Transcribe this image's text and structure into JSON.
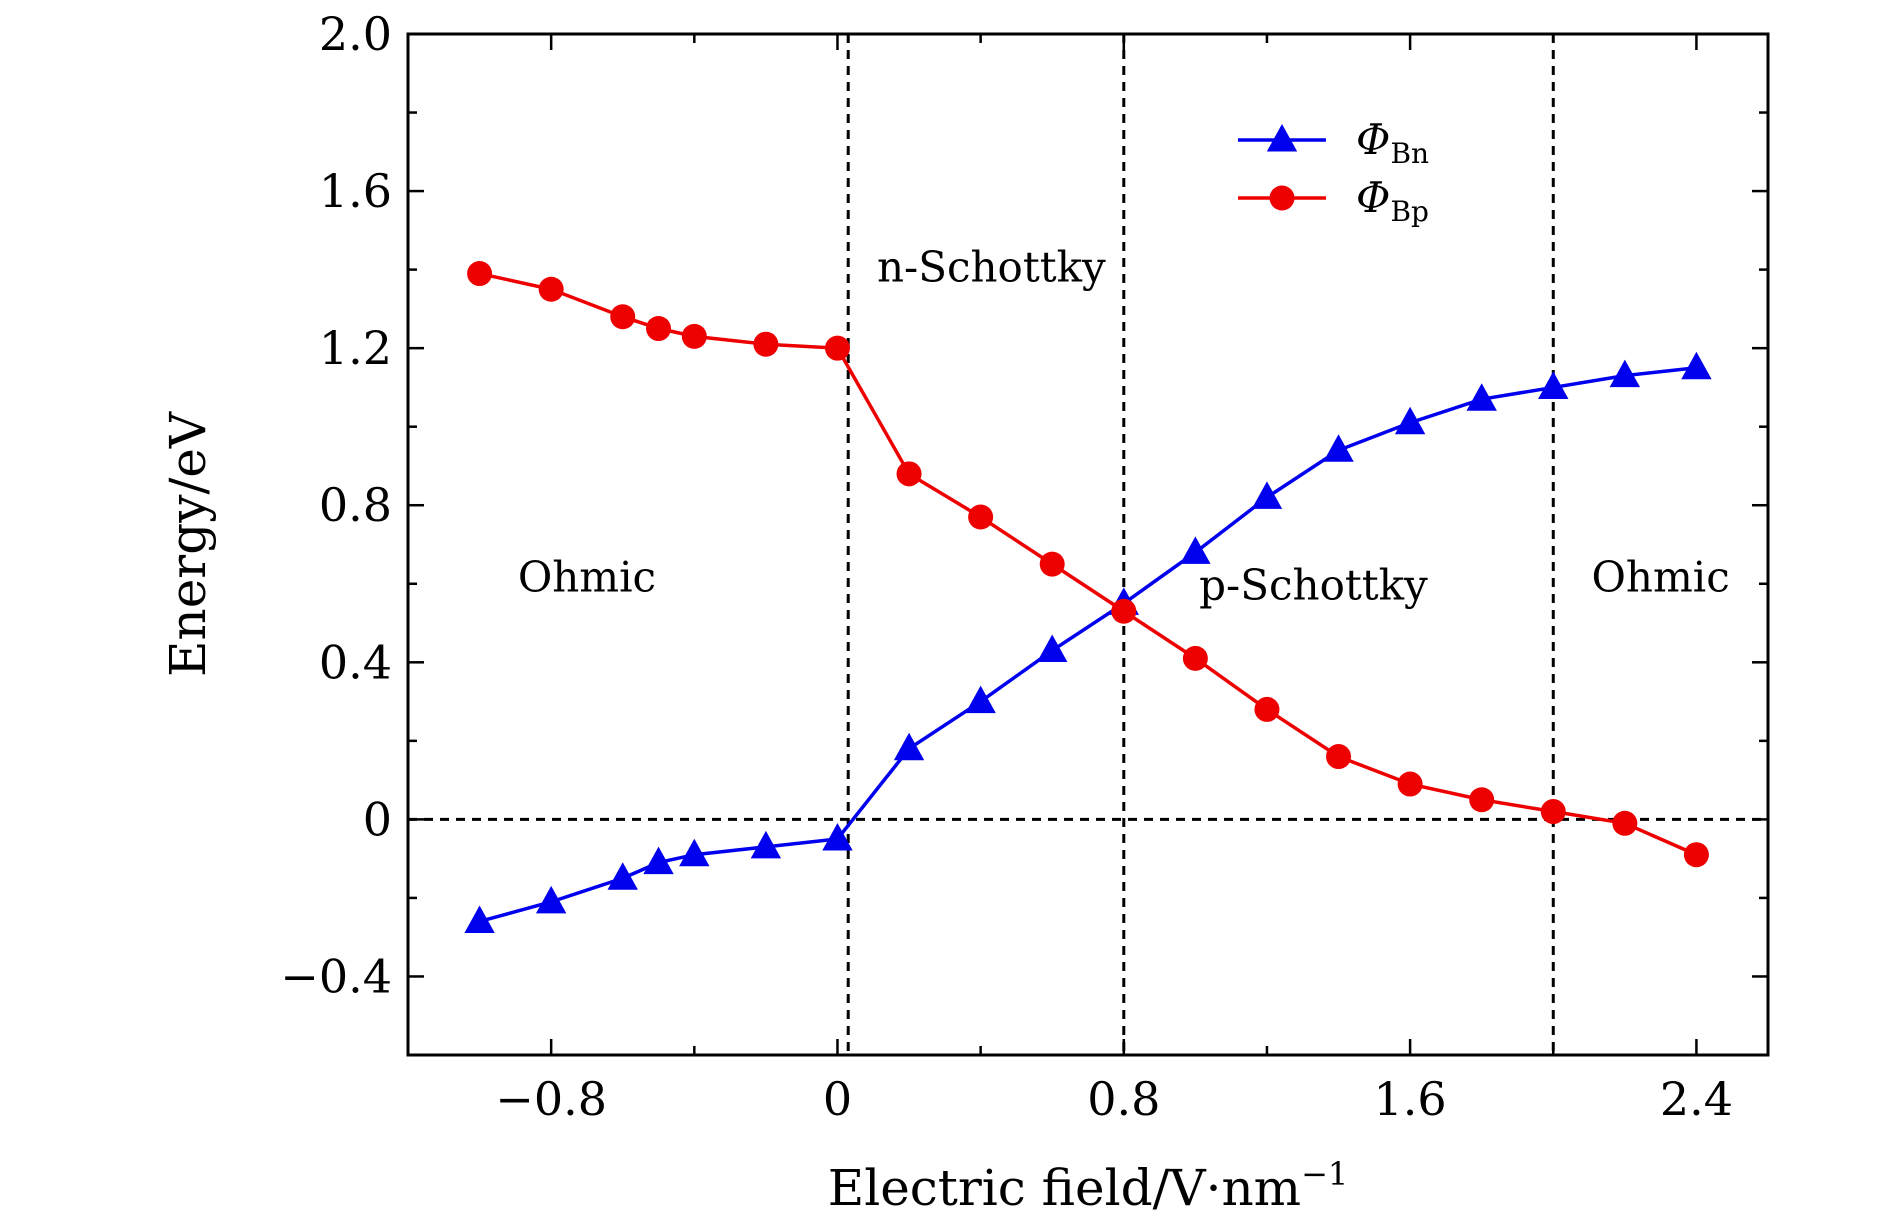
{
  "chart_data": {
    "type": "line",
    "title": "",
    "xlabel": "Electric field/V·nm",
    "xlabel_sup": "−1",
    "ylabel": "Energy/eV",
    "xlim": [
      -1.2,
      2.6
    ],
    "ylim": [
      -0.6,
      2.0
    ],
    "xticks": [
      {
        "value": -0.8,
        "label": "−0.8"
      },
      {
        "value": 0,
        "label": "0"
      },
      {
        "value": 0.8,
        "label": "0.8"
      },
      {
        "value": 1.6,
        "label": "1.6"
      },
      {
        "value": 2.4,
        "label": "2.4"
      }
    ],
    "yticks": [
      {
        "value": -0.4,
        "label": "−0.4"
      },
      {
        "value": 0,
        "label": "0"
      },
      {
        "value": 0.4,
        "label": "0.4"
      },
      {
        "value": 0.8,
        "label": "0.8"
      },
      {
        "value": 1.2,
        "label": "1.2"
      },
      {
        "value": 1.6,
        "label": "1.6"
      },
      {
        "value": 2.0,
        "label": "2.0"
      }
    ],
    "x_minor_step": 0.4,
    "y_minor_step": 0.2,
    "x": [
      -1.0,
      -0.8,
      -0.6,
      -0.5,
      -0.4,
      -0.2,
      0.0,
      0.2,
      0.4,
      0.6,
      0.8,
      1.0,
      1.2,
      1.4,
      1.6,
      1.8,
      2.0,
      2.2,
      2.4
    ],
    "series": [
      {
        "name": "Φ",
        "sub": "Bn",
        "color": "#0000ee",
        "marker": "triangle",
        "values": [
          -0.26,
          -0.21,
          -0.15,
          -0.11,
          -0.09,
          -0.07,
          -0.05,
          0.18,
          0.3,
          0.43,
          0.55,
          0.68,
          0.82,
          0.94,
          1.01,
          1.07,
          1.1,
          1.13,
          1.15
        ]
      },
      {
        "name": "Φ",
        "sub": "Bp",
        "color": "#ee0000",
        "marker": "circle",
        "values": [
          1.39,
          1.35,
          1.28,
          1.25,
          1.23,
          1.21,
          1.2,
          0.88,
          0.77,
          0.65,
          0.53,
          0.41,
          0.28,
          0.16,
          0.09,
          0.05,
          0.02,
          -0.01,
          -0.09
        ]
      }
    ],
    "reference_lines": {
      "vertical_x": [
        0.03,
        0.8,
        2.0
      ],
      "horizontal_y": [
        0
      ]
    },
    "region_labels": [
      {
        "text": "Ohmic",
        "x": -0.7,
        "y": 0.58
      },
      {
        "text": "n-Schottky",
        "x": 0.43,
        "y": 1.37
      },
      {
        "text": "p-Schottky",
        "x": 1.33,
        "y": 0.56
      },
      {
        "text": "Ohmic",
        "x": 2.3,
        "y": 0.58
      }
    ],
    "legend_position": "top-right",
    "grid": false
  }
}
